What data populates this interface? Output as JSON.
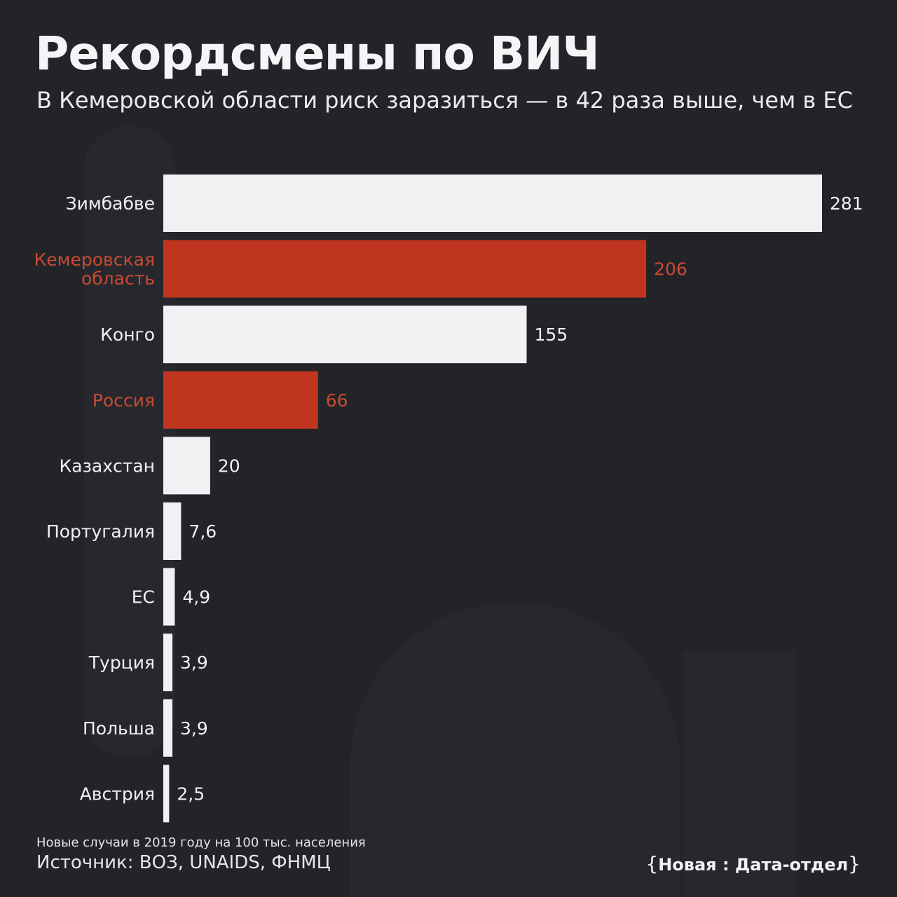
{
  "header": {
    "title": "Рекордсмены по ВИЧ",
    "subtitle": "В Кемеровской области риск заразиться — в 42 раза выше, чем в ЕС"
  },
  "footer": {
    "note": "Новые случаи в 2019 году на 100 тыс. населения",
    "source": "Источник: ВОЗ, UNAIDS, ФНМЦ",
    "brand": "Новая : Дата-отдел"
  },
  "colors": {
    "background": "#232428",
    "bar_default": "#f0f1f3",
    "bar_highlight": "#c0351f",
    "label_default": "#f0f1f3",
    "label_highlight": "#c94a32"
  },
  "chart_data": {
    "type": "bar",
    "orientation": "horizontal",
    "title": "Рекордсмены по ВИЧ",
    "subtitle": "В Кемеровской области риск заразиться — в 42 раза выше, чем в ЕС",
    "categories": [
      "Зимбабве",
      "Кемеровская область",
      "Конго",
      "Россия",
      "Казахстан",
      "Португалия",
      "ЕС",
      "Турция",
      "Польша",
      "Австрия"
    ],
    "category_lines": [
      [
        "Зимбабве"
      ],
      [
        "Кемеровская",
        "область"
      ],
      [
        "Конго"
      ],
      [
        "Россия"
      ],
      [
        "Казахстан"
      ],
      [
        "Португалия"
      ],
      [
        "ЕС"
      ],
      [
        "Турция"
      ],
      [
        "Польша"
      ],
      [
        "Австрия"
      ]
    ],
    "values": [
      281,
      206,
      155,
      66,
      20,
      7.6,
      4.9,
      3.9,
      3.9,
      2.5
    ],
    "value_labels": [
      "281",
      "206",
      "155",
      "66",
      "20",
      "7,6",
      "4,9",
      "3,9",
      "3,9",
      "2,5"
    ],
    "highlighted": [
      false,
      true,
      false,
      true,
      false,
      false,
      false,
      false,
      false,
      false
    ],
    "xlim": [
      0,
      281
    ],
    "grid": false,
    "legend": "none"
  }
}
